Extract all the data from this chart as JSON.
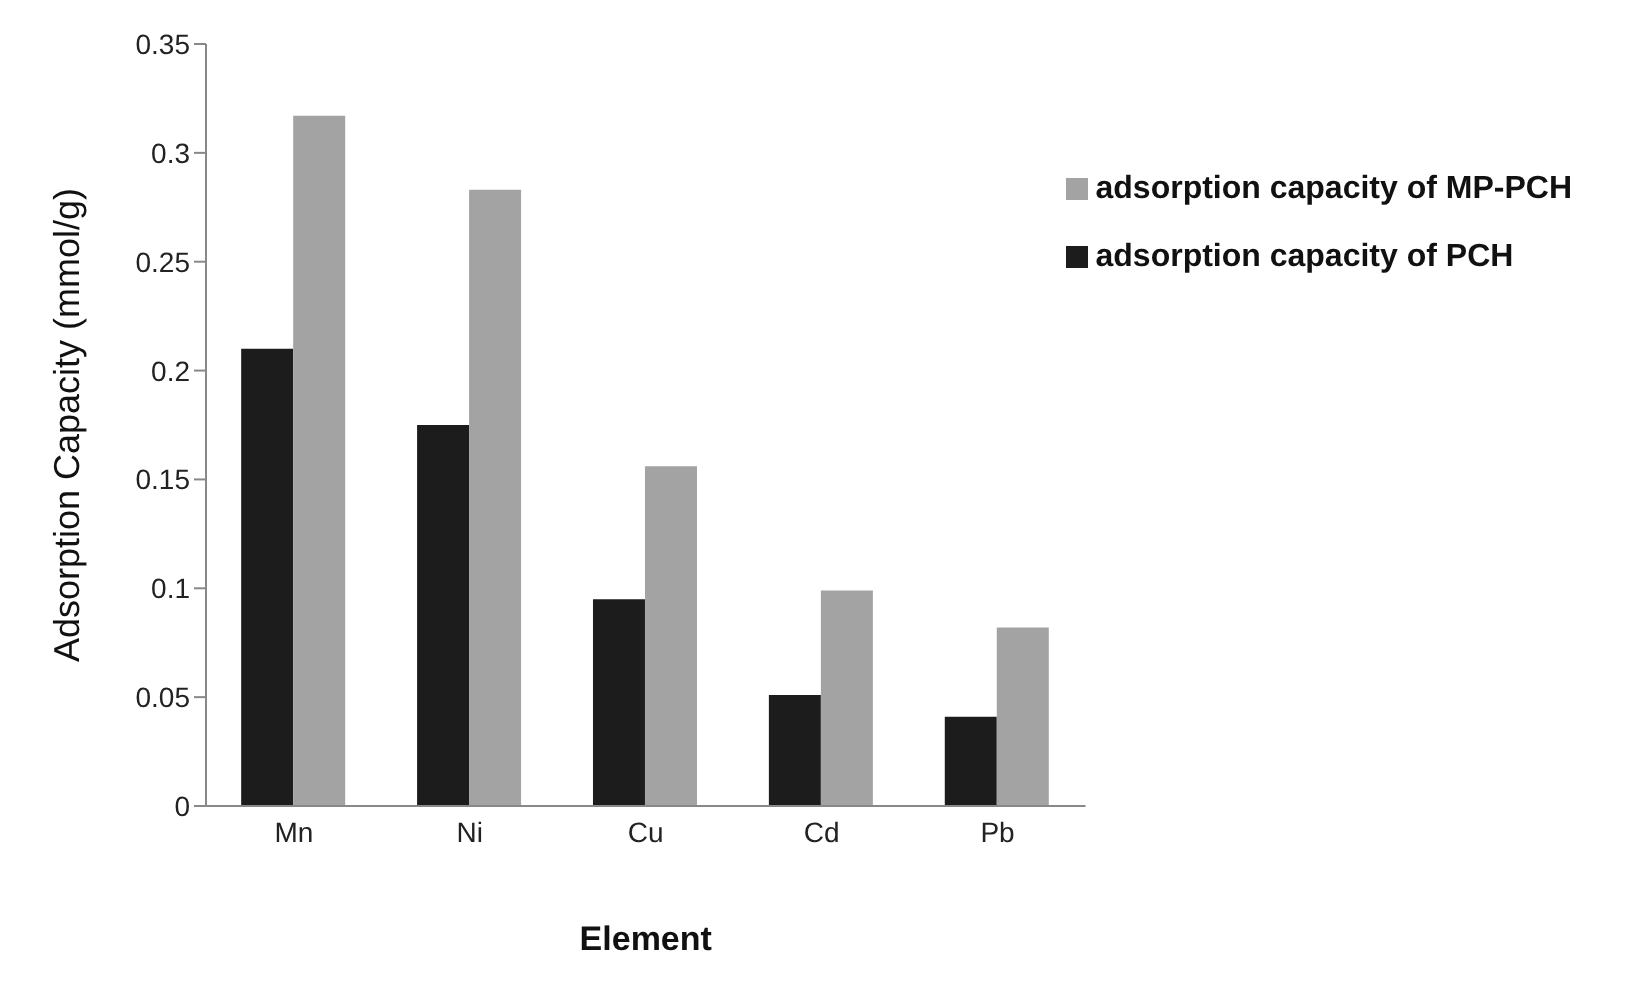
{
  "chart_data": {
    "type": "bar",
    "xlabel": "Element",
    "ylabel": "Adsorption Capacity (mmol/g)",
    "categories": [
      "Mn",
      "Ni",
      "Cu",
      "Cd",
      "Pb"
    ],
    "series": [
      {
        "name": "adsorption capacity of PCH",
        "color": "#1c1c1c",
        "values": [
          0.21,
          0.175,
          0.095,
          0.051,
          0.041
        ]
      },
      {
        "name": "adsorption capacity of MP-PCH",
        "color": "#a3a3a3",
        "values": [
          0.317,
          0.283,
          0.156,
          0.099,
          0.082
        ]
      }
    ],
    "ylim": [
      0,
      0.35
    ],
    "yticks": [
      0,
      0.05,
      0.1,
      0.15,
      0.2,
      0.25,
      0.3,
      0.35
    ],
    "grid": false,
    "legend": "top right"
  }
}
